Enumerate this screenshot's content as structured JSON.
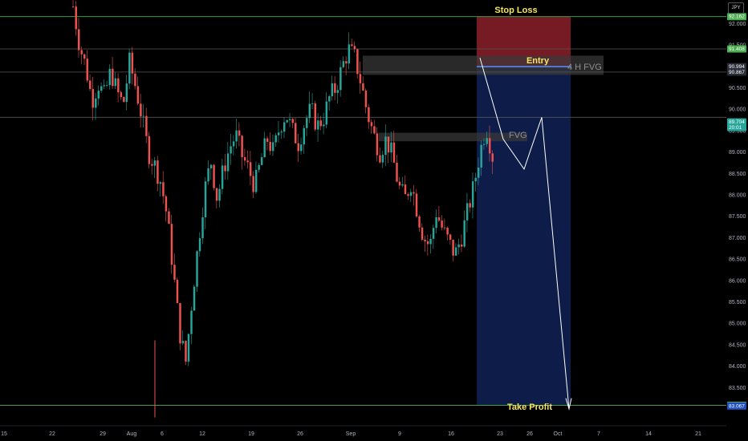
{
  "symbol": {
    "currency": "JPY"
  },
  "colors": {
    "up": "#26a69a",
    "down": "#ef5350",
    "level_line": "#4caf50",
    "stop_zone": "#8b1e2a",
    "target_zone": "#0f1e4d",
    "fvg_zone": "#3a3a3a",
    "label": "#f5e663",
    "projection": "#ffffff"
  },
  "chart_data": {
    "type": "candlestick",
    "ylim": [
      82.7,
      92.4
    ],
    "grid": false,
    "y_ticks": [
      "92.000",
      "91.500",
      "90.500",
      "90.000",
      "89.500",
      "89.000",
      "88.500",
      "88.000",
      "87.500",
      "87.000",
      "86.500",
      "86.000",
      "85.500",
      "85.000",
      "84.500",
      "84.000",
      "83.500"
    ],
    "x_ticks": [
      "15",
      "22",
      "29",
      "Aug",
      "6",
      "12",
      "19",
      "26",
      "Sep",
      "9",
      "16",
      "23",
      "26",
      "Oct",
      "7",
      "14",
      "21"
    ],
    "price_labels": [
      {
        "text": "92.162",
        "value": 92.162,
        "color": "#4caf50"
      },
      {
        "text": "91.408",
        "value": 91.408,
        "color": "#4caf50"
      },
      {
        "text": "90.994",
        "value": 90.994,
        "color": "#2a2e39"
      },
      {
        "text": "90.867",
        "value": 90.867,
        "color": "#2a2e39"
      },
      {
        "text": "89.704",
        "value": 89.704,
        "color": "#26a69a",
        "sub": "20:01"
      },
      {
        "text": "83.085",
        "value": 83.085,
        "color": "#4caf50"
      },
      {
        "text": "83.067",
        "value": 83.067,
        "color": "#1e4fbf"
      }
    ],
    "levels": [
      92.162,
      91.408,
      90.867,
      89.81,
      83.085
    ],
    "zones": {
      "stop_loss": {
        "label": "Stop Loss",
        "top": 92.162,
        "bottom": 90.994
      },
      "take_profit": {
        "label": "Take Profit",
        "top": 90.994,
        "bottom": 83.085
      },
      "entry": {
        "label": "Entry",
        "price": 90.994
      },
      "fvg_4h": {
        "label": "4 H FVG",
        "top": 91.25,
        "bottom": 90.8
      },
      "fvg": {
        "label": "FVG",
        "top": 89.45,
        "bottom": 89.25
      }
    },
    "projection_path": [
      91.2,
      89.3,
      88.6,
      89.81,
      83.0
    ],
    "series_anchor": [
      92.4,
      91.5,
      91.0,
      90.2,
      90.6,
      90.3,
      90.9,
      90.4,
      90.1,
      91.1,
      90.5,
      89.8,
      89.0,
      88.7,
      88.3,
      87.5,
      86.2,
      84.8,
      84.1,
      85.6,
      86.9,
      88.1,
      88.8,
      87.9,
      88.6,
      89.1,
      89.4,
      88.9,
      88.6,
      88.2,
      88.8,
      89.3,
      89.0,
      89.6,
      89.9,
      89.5,
      89.2,
      89.7,
      90.0,
      89.6,
      89.8,
      90.3,
      90.5,
      91.0,
      91.4,
      91.2,
      90.6,
      89.9,
      89.4,
      89.0,
      89.3,
      88.9,
      88.2,
      87.9,
      88.3,
      87.6,
      87.0,
      86.8,
      87.6,
      87.2,
      86.9,
      86.6,
      87.0,
      87.6,
      88.2,
      89.0,
      89.6,
      88.9
    ]
  }
}
